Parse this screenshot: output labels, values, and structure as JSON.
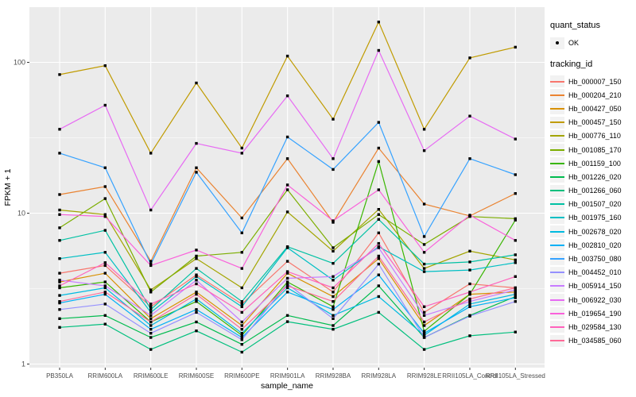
{
  "figure": {
    "background": "#FFFFFF",
    "panel_background": "#EBEBEB",
    "grid_color": "#FFFFFF",
    "tick_text_color": "#4D4D4D",
    "axis_title_color": "#000000",
    "point_color": "#000000"
  },
  "legend": {
    "quant_title": "quant_status",
    "quant_items": [
      {
        "label": "OK",
        "symbol": "point"
      }
    ],
    "series_title": "tracking_id"
  },
  "chart_data": {
    "type": "line",
    "title": "",
    "xlabel": "sample_name",
    "ylabel": "FPKM + 1",
    "y_scale": "log10",
    "y_ticks": [
      1,
      10,
      100
    ],
    "ylim": [
      1,
      230
    ],
    "grid": true,
    "legend_position": "right",
    "point_marker": "small-black-square",
    "categories": [
      "PB350LA",
      "RRIM600LA",
      "RRIM600LE",
      "RRIM600SE",
      "RRIM600PE",
      "RRIM901LA",
      "RRIM928BA",
      "RRIM928LA",
      "RRIM928LE",
      "RRII105LA_Control",
      "RRII105LA_Stressed"
    ],
    "series": [
      {
        "name": "Hb_000007_150",
        "color": "#F8766D",
        "values": [
          4.0,
          4.5,
          2.4,
          3.9,
          2.5,
          4.8,
          3.0,
          7.4,
          2.2,
          3.4,
          3.2
        ]
      },
      {
        "name": "Hb_000204_210",
        "color": "#EA8331",
        "values": [
          13.3,
          15,
          4.8,
          20,
          9.3,
          23,
          8.7,
          27,
          11.5,
          9.6,
          13.5
        ]
      },
      {
        "name": "Hb_000427_050",
        "color": "#D89000",
        "values": [
          3.5,
          4.0,
          2.0,
          3.0,
          1.8,
          4.0,
          2.8,
          5.0,
          1.8,
          2.9,
          3.0
        ]
      },
      {
        "name": "Hb_000457_150",
        "color": "#C09B00",
        "values": [
          83,
          95,
          25,
          73,
          27,
          110,
          42,
          185,
          36,
          107,
          126
        ]
      },
      {
        "name": "Hb_000776_110",
        "color": "#A3A500",
        "values": [
          10.5,
          9.8,
          3.1,
          5.0,
          3.2,
          10.2,
          5.6,
          10.6,
          4.3,
          5.6,
          4.9
        ]
      },
      {
        "name": "Hb_001085_170",
        "color": "#7CAE00",
        "values": [
          8.0,
          12.5,
          3.0,
          5.2,
          5.5,
          14.3,
          5.9,
          9.8,
          6.2,
          9.5,
          9.2
        ]
      },
      {
        "name": "Hb_001159_100",
        "color": "#39B600",
        "values": [
          3.2,
          3.5,
          1.9,
          2.6,
          1.55,
          3.5,
          2.4,
          22,
          1.65,
          2.9,
          9.0
        ]
      },
      {
        "name": "Hb_001226_020",
        "color": "#00BB4E",
        "values": [
          2.0,
          2.1,
          1.5,
          1.9,
          1.35,
          2.1,
          1.8,
          3.3,
          1.5,
          2.1,
          2.8
        ]
      },
      {
        "name": "Hb_001266_060",
        "color": "#00BF7D",
        "values": [
          1.75,
          1.84,
          1.25,
          1.66,
          1.2,
          1.91,
          1.7,
          2.2,
          1.25,
          1.54,
          1.63
        ]
      },
      {
        "name": "Hb_001507_020",
        "color": "#00C1A3",
        "values": [
          6.6,
          7.7,
          2.3,
          4.3,
          2.6,
          6.0,
          4.65,
          9.1,
          4.6,
          4.75,
          5.3
        ]
      },
      {
        "name": "Hb_001975_160",
        "color": "#00BFC4",
        "values": [
          5.0,
          5.5,
          2.2,
          3.8,
          2.4,
          5.9,
          3.6,
          6.0,
          4.1,
          4.2,
          4.7
        ]
      },
      {
        "name": "Hb_002678_020",
        "color": "#00BAE0",
        "values": [
          2.85,
          3.2,
          1.8,
          2.7,
          1.6,
          3.2,
          2.1,
          2.8,
          1.55,
          2.5,
          2.9
        ]
      },
      {
        "name": "Hb_002810_020",
        "color": "#00B0F6",
        "values": [
          2.54,
          2.9,
          1.7,
          2.3,
          1.5,
          3.0,
          2.3,
          3.9,
          1.6,
          2.4,
          2.75
        ]
      },
      {
        "name": "Hb_003750_080",
        "color": "#35A2FF",
        "values": [
          25,
          20,
          4.6,
          18.7,
          7.4,
          32,
          19.5,
          40,
          7.0,
          23,
          18
        ]
      },
      {
        "name": "Hb_004452_010",
        "color": "#9590FF",
        "values": [
          2.3,
          2.5,
          1.6,
          2.2,
          1.45,
          3.4,
          2.0,
          4.6,
          1.5,
          2.08,
          2.6
        ]
      },
      {
        "name": "Hb_005914_150",
        "color": "#C77CFF",
        "values": [
          3.6,
          3.3,
          2.1,
          3.6,
          1.9,
          3.7,
          3.8,
          5.9,
          2.1,
          2.6,
          3.1
        ]
      },
      {
        "name": "Hb_006922_030",
        "color": "#E76BF3",
        "values": [
          36,
          52,
          10.5,
          29,
          25,
          60,
          23,
          120,
          26,
          44,
          31
        ]
      },
      {
        "name": "Hb_019654_190",
        "color": "#FA62DB",
        "values": [
          9.8,
          9.5,
          4.5,
          5.7,
          4.3,
          15.4,
          8.9,
          14.3,
          5.5,
          9.7,
          6.6
        ]
      },
      {
        "name": "Hb_029584_130",
        "color": "#FF62BC",
        "values": [
          3.3,
          4.7,
          2.5,
          3.4,
          2.2,
          4.1,
          3.2,
          6.3,
          2.4,
          3.0,
          3.8
        ]
      },
      {
        "name": "Hb_034585_060",
        "color": "#FF6A98",
        "values": [
          2.6,
          3.0,
          1.9,
          2.9,
          1.7,
          3.3,
          2.6,
          5.2,
          1.9,
          2.7,
          3.2
        ]
      }
    ]
  }
}
